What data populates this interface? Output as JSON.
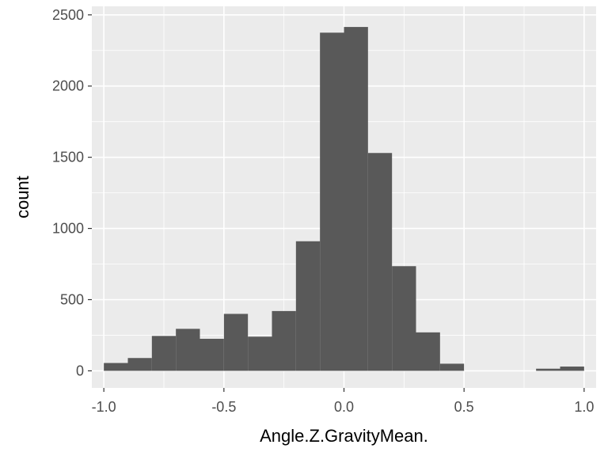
{
  "chart_data": {
    "type": "histogram",
    "title": "",
    "xlabel": "Angle.Z.GravityMean.",
    "ylabel": "count",
    "xlim": [
      -1.05,
      1.05
    ],
    "ylim": [
      -120,
      2560
    ],
    "bin_width": 0.1,
    "bins": [
      {
        "x0": -1.0,
        "x1": -0.9,
        "count": 55
      },
      {
        "x0": -0.9,
        "x1": -0.8,
        "count": 90
      },
      {
        "x0": -0.8,
        "x1": -0.7,
        "count": 245
      },
      {
        "x0": -0.7,
        "x1": -0.6,
        "count": 295
      },
      {
        "x0": -0.6,
        "x1": -0.5,
        "count": 225
      },
      {
        "x0": -0.5,
        "x1": -0.4,
        "count": 400
      },
      {
        "x0": -0.4,
        "x1": -0.3,
        "count": 240
      },
      {
        "x0": -0.3,
        "x1": -0.2,
        "count": 420
      },
      {
        "x0": -0.2,
        "x1": -0.1,
        "count": 910
      },
      {
        "x0": -0.1,
        "x1": 0.0,
        "count": 2375
      },
      {
        "x0": 0.0,
        "x1": 0.1,
        "count": 2415
      },
      {
        "x0": 0.1,
        "x1": 0.2,
        "count": 1530
      },
      {
        "x0": 0.2,
        "x1": 0.3,
        "count": 735
      },
      {
        "x0": 0.3,
        "x1": 0.4,
        "count": 270
      },
      {
        "x0": 0.4,
        "x1": 0.5,
        "count": 50
      },
      {
        "x0": 0.5,
        "x1": 0.6,
        "count": 0
      },
      {
        "x0": 0.6,
        "x1": 0.7,
        "count": 0
      },
      {
        "x0": 0.7,
        "x1": 0.8,
        "count": 0
      },
      {
        "x0": 0.8,
        "x1": 0.9,
        "count": 15
      },
      {
        "x0": 0.9,
        "x1": 1.0,
        "count": 30
      }
    ],
    "x_ticks": [
      -1.0,
      -0.5,
      0.0,
      0.5,
      1.0
    ],
    "x_tick_labels": [
      "-1.0",
      "-0.5",
      "0.0",
      "0.5",
      "1.0"
    ],
    "y_ticks": [
      0,
      500,
      1000,
      1500,
      2000,
      2500
    ],
    "y_tick_labels": [
      "0",
      "500",
      "1000",
      "1500",
      "2000",
      "2500"
    ],
    "grid": true,
    "colors": {
      "panel_bg": "#ebebeb",
      "grid_major": "#ffffff",
      "bar_fill": "#595959",
      "tick_color": "#333333"
    }
  }
}
